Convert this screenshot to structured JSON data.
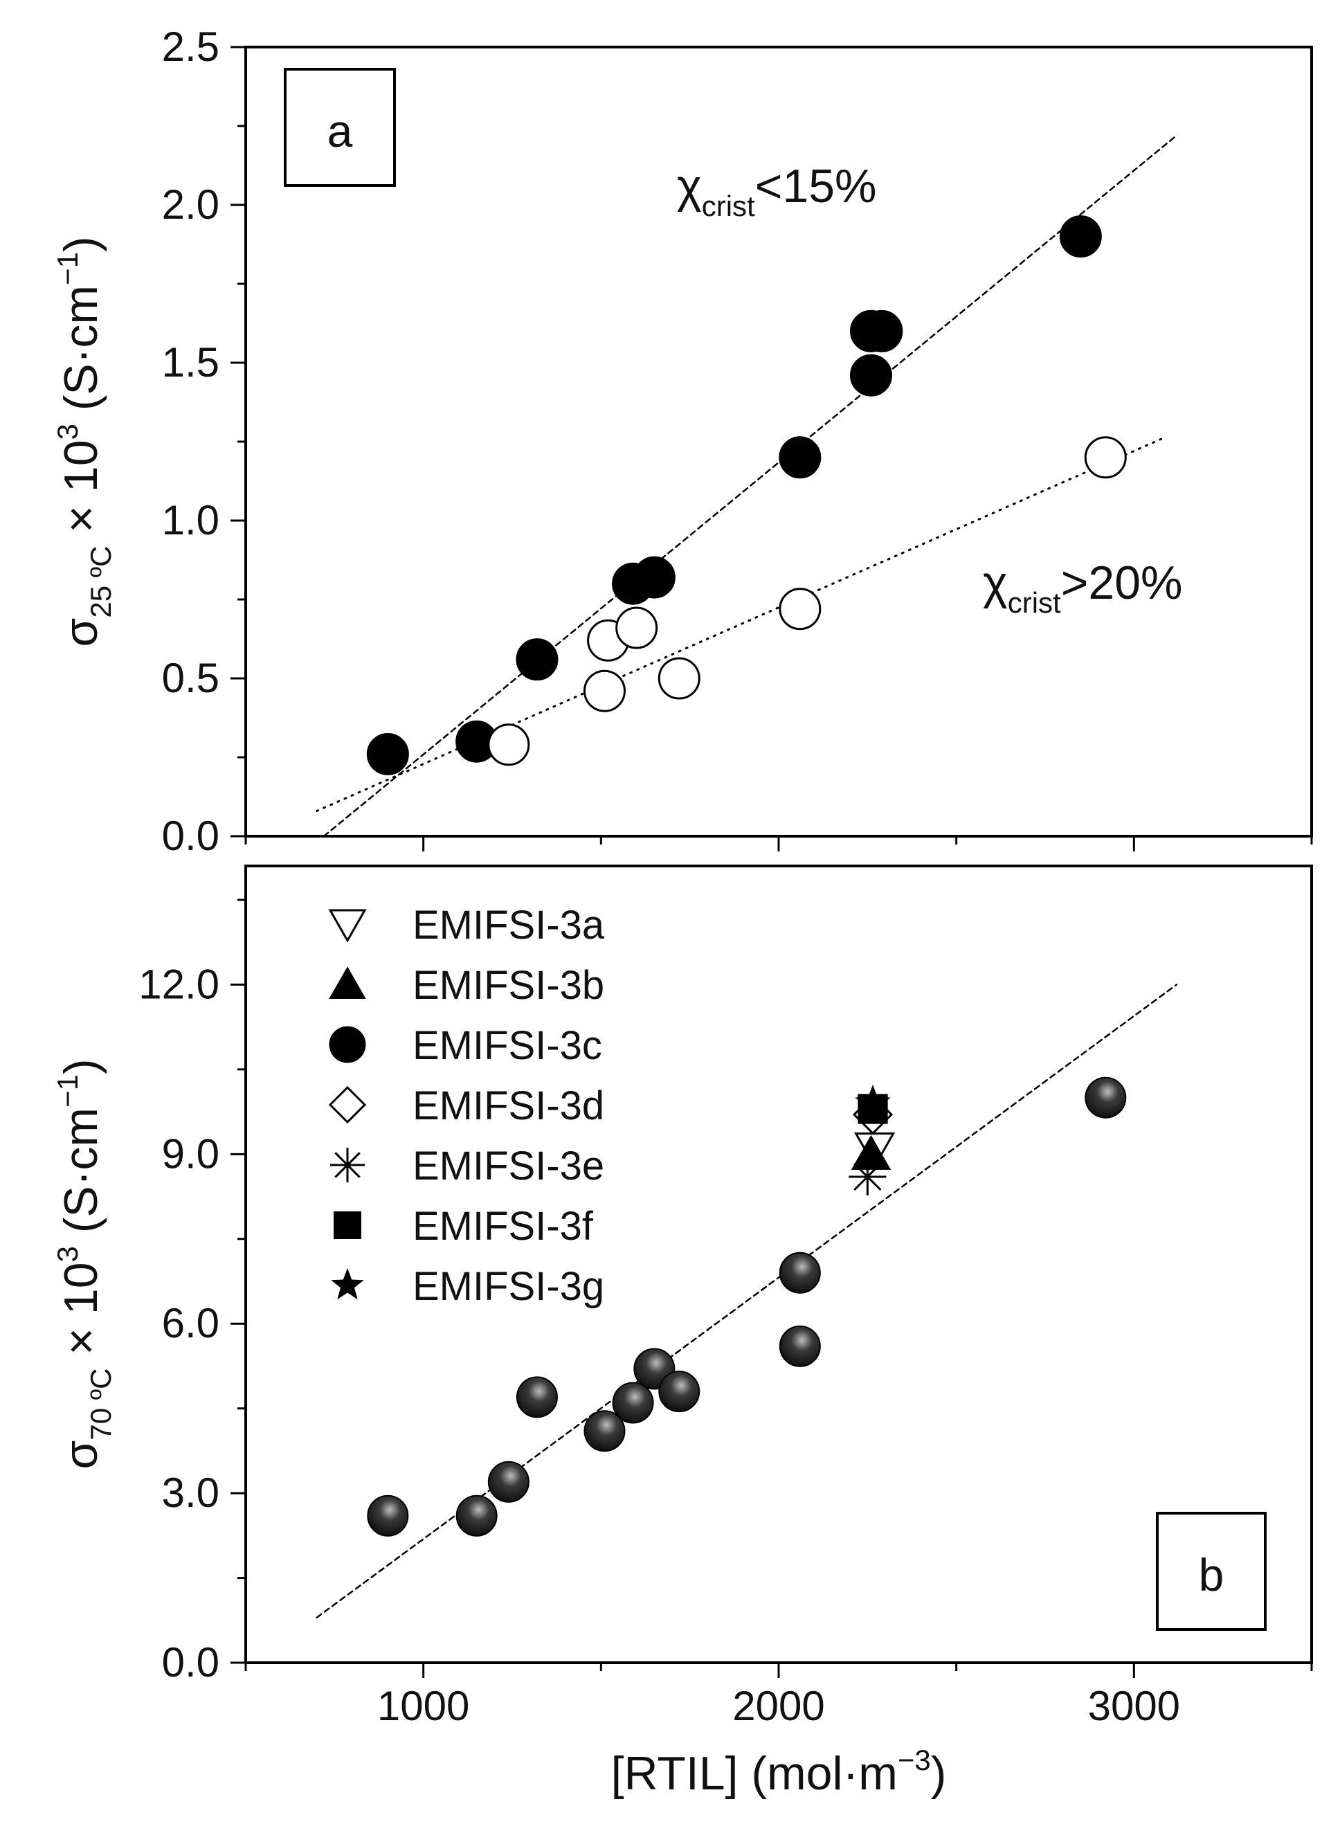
{
  "figure": {
    "x_axis_title": "[RTIL] (mol·m",
    "x_axis_unit_exponent": "−3",
    "x_axis_title_close": ")",
    "x_ticks": [
      1000,
      2000,
      3000
    ]
  },
  "chart_data": [
    {
      "type": "scatter",
      "panel_label": "a",
      "ylabel_symbol": "σ",
      "ylabel_subscript": "25 ºC",
      "ylabel_rest": " × 10",
      "ylabel_exponent": "3",
      "ylabel_units": " (S·cm",
      "ylabel_unit_exponent": "−1",
      "ylabel_close": ")",
      "xlim": [
        500,
        3500
      ],
      "ylim": [
        0,
        2.5
      ],
      "y_ticks": [
        0.0,
        0.5,
        1.0,
        1.5,
        2.0,
        2.5
      ],
      "y_tick_labels": [
        "0.0",
        "0.5",
        "1.0",
        "1.5",
        "2.0",
        "2.5"
      ],
      "series": [
        {
          "name": "χcrist<15%",
          "marker": "filled-circle",
          "x": [
            900,
            1150,
            1320,
            1590,
            1650,
            2060,
            2260,
            2260,
            2290,
            2850
          ],
          "y": [
            0.26,
            0.3,
            0.56,
            0.8,
            0.82,
            1.2,
            1.46,
            1.6,
            1.6,
            1.9
          ]
        },
        {
          "name": "χcrist>20%",
          "marker": "open-circle",
          "x": [
            1240,
            1510,
            1520,
            1600,
            1720,
            2060,
            2920
          ],
          "y": [
            0.29,
            0.46,
            0.62,
            0.66,
            0.5,
            0.72,
            1.2
          ]
        }
      ],
      "fit_lines": [
        {
          "style": "dashed",
          "x": [
            720,
            3120
          ],
          "y": [
            0.0,
            2.22
          ]
        },
        {
          "style": "dotted",
          "x": [
            700,
            3080
          ],
          "y": [
            0.08,
            1.26
          ]
        }
      ],
      "annotations": [
        {
          "symbol": "χ",
          "sub": "crist",
          "rest": "<15%"
        },
        {
          "symbol": "χ",
          "sub": "crist",
          "rest": ">20%"
        }
      ]
    },
    {
      "type": "scatter",
      "panel_label": "b",
      "ylabel_symbol": "σ",
      "ylabel_subscript": "70 ºC",
      "ylabel_rest": " × 10",
      "ylabel_exponent": "3",
      "ylabel_units": " (S·cm",
      "ylabel_unit_exponent": "−1",
      "ylabel_close": ")",
      "xlim": [
        500,
        3500
      ],
      "ylim": [
        0,
        14.1
      ],
      "y_ticks": [
        0.0,
        3.0,
        6.0,
        9.0,
        12.0
      ],
      "y_tick_labels": [
        "0.0",
        "3.0",
        "6.0",
        "9.0",
        "12.0"
      ],
      "legend": [
        {
          "label": "EMIFSI-3a",
          "marker": "open-triangle-down"
        },
        {
          "label": "EMIFSI-3b",
          "marker": "filled-triangle"
        },
        {
          "label": "EMIFSI-3c",
          "marker": "filled-circle"
        },
        {
          "label": "EMIFSI-3d",
          "marker": "open-diamond"
        },
        {
          "label": "EMIFSI-3e",
          "marker": "asterisk"
        },
        {
          "label": "EMIFSI-3f",
          "marker": "filled-square"
        },
        {
          "label": "EMIFSI-3g",
          "marker": "filled-star"
        }
      ],
      "series": [
        {
          "name": "EMIFSI-3c",
          "marker": "shaded-circle",
          "x": [
            900,
            1150,
            1240,
            1320,
            1510,
            1590,
            1650,
            1720,
            2060,
            2060,
            2920
          ],
          "y": [
            2.6,
            2.6,
            3.2,
            4.7,
            4.1,
            4.6,
            5.2,
            4.8,
            5.6,
            6.9,
            10.0
          ]
        },
        {
          "name": "EMIFSI-3a",
          "marker": "open-triangle-down",
          "x": [
            2270
          ],
          "y": [
            9.1
          ]
        },
        {
          "name": "EMIFSI-3b",
          "marker": "filled-triangle",
          "x": [
            2260
          ],
          "y": [
            9.0
          ]
        },
        {
          "name": "EMIFSI-3d",
          "marker": "open-diamond",
          "x": [
            2265
          ],
          "y": [
            9.7
          ]
        },
        {
          "name": "EMIFSI-3e",
          "marker": "asterisk",
          "x": [
            2250
          ],
          "y": [
            8.6
          ]
        },
        {
          "name": "EMIFSI-3f",
          "marker": "filled-square",
          "x": [
            2265
          ],
          "y": [
            9.8
          ]
        },
        {
          "name": "EMIFSI-3g",
          "marker": "filled-star",
          "x": [
            2265
          ],
          "y": [
            9.9
          ]
        }
      ],
      "fit_lines": [
        {
          "style": "dashed",
          "x": [
            700,
            3120
          ],
          "y": [
            0.8,
            12.0
          ]
        }
      ]
    }
  ]
}
